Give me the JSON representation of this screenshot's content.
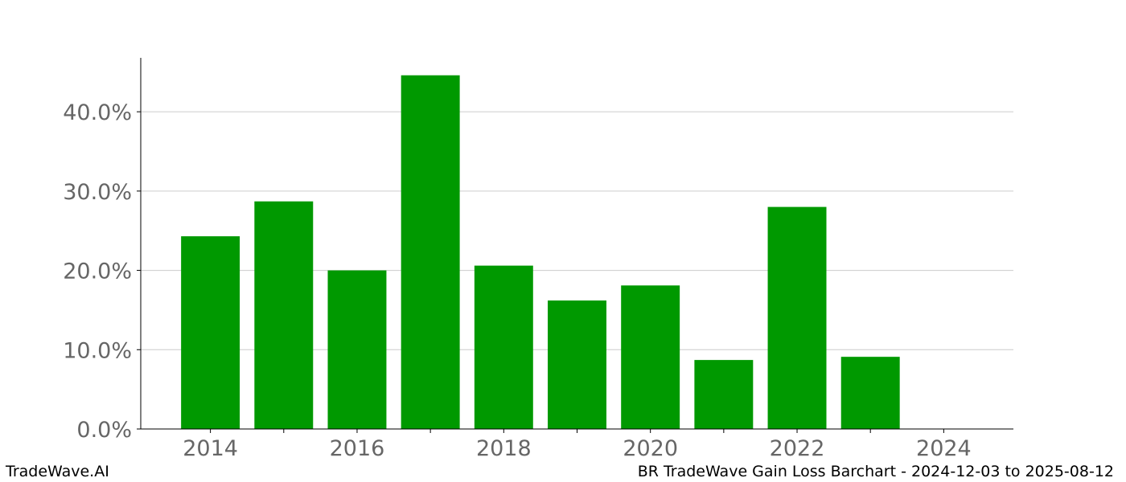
{
  "chart_data": {
    "type": "bar",
    "title": "",
    "xlabel": "",
    "ylabel": "",
    "x": [
      2014,
      2015,
      2016,
      2017,
      2018,
      2019,
      2020,
      2021,
      2022,
      2023,
      2024
    ],
    "values": [
      24.3,
      28.7,
      20.0,
      44.6,
      20.6,
      16.2,
      18.1,
      8.7,
      28.0,
      9.1,
      0.0
    ],
    "xlim": [
      2013.05,
      2024.95
    ],
    "ylim": [
      0,
      46.8
    ],
    "x_ticks": [
      2014,
      2016,
      2018,
      2020,
      2022,
      2024
    ],
    "x_tick_labels": [
      "2014",
      "2016",
      "2018",
      "2020",
      "2022",
      "2024"
    ],
    "y_ticks": [
      0,
      10,
      20,
      30,
      40
    ],
    "y_tick_labels": [
      "0.0%",
      "10.0%",
      "20.0%",
      "30.0%",
      "40.0%"
    ],
    "grid": "horizontal",
    "legend": "none",
    "bar_color": "#009900",
    "grid_color": "#cccccc",
    "tick_label_color": "#666666"
  },
  "footer": {
    "left": "TradeWave.AI",
    "right": "BR TradeWave Gain Loss Barchart - 2024-12-03 to 2025-08-12"
  }
}
